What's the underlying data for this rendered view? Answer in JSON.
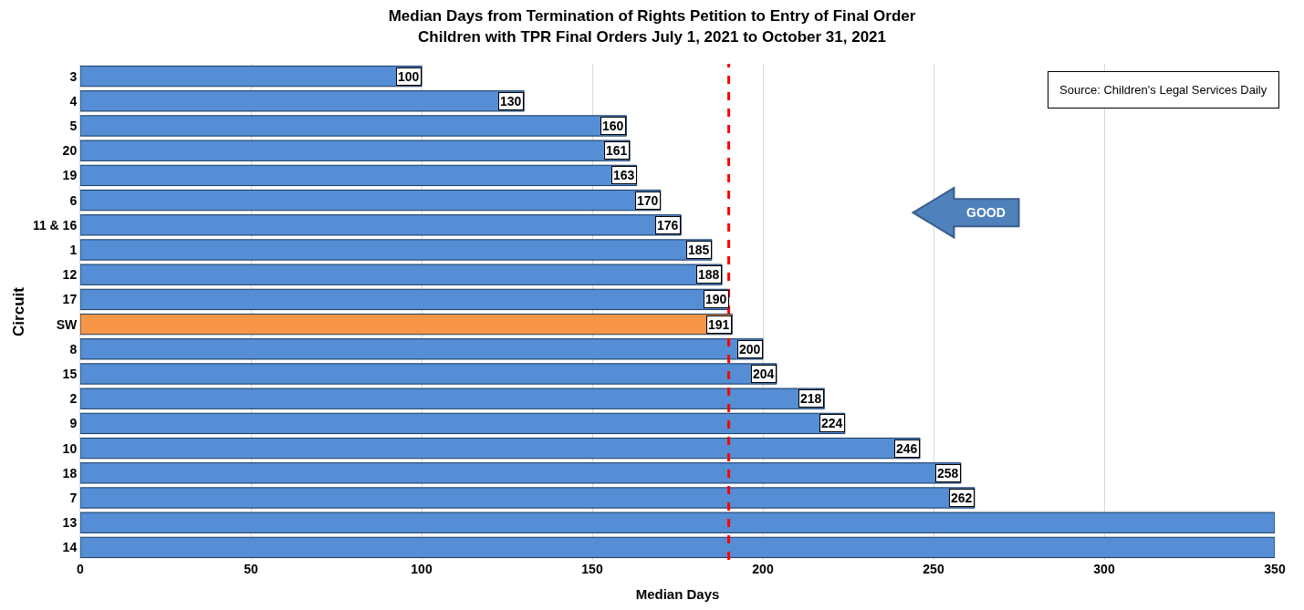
{
  "chart_data": {
    "type": "bar",
    "orientation": "horizontal",
    "title": "Median Days from Termination of Rights Petition to Entry of Final Order\nChildren with TPR Final Orders July 1, 2021 to October 31, 2021",
    "xlabel": "Median Days",
    "ylabel": "Circuit",
    "categories": [
      "3",
      "4",
      "5",
      "20",
      "19",
      "6",
      "11 & 16",
      "1",
      "12",
      "17",
      "SW",
      "8",
      "15",
      "2",
      "9",
      "10",
      "18",
      "7",
      "13",
      "14"
    ],
    "values": [
      100,
      130,
      160,
      161,
      163,
      170,
      176,
      185,
      188,
      190,
      191,
      200,
      204,
      218,
      224,
      246,
      258,
      262,
      350,
      350
    ],
    "value_labels": [
      "100",
      "130",
      "160",
      "161",
      "163",
      "170",
      "176",
      "185",
      "188",
      "190",
      "191",
      "200",
      "204",
      "218",
      "224",
      "246",
      "258",
      "262",
      null,
      null
    ],
    "colors": [
      "#558ed5",
      "#558ed5",
      "#558ed5",
      "#558ed5",
      "#558ed5",
      "#558ed5",
      "#558ed5",
      "#558ed5",
      "#558ed5",
      "#558ed5",
      "#f79646",
      "#558ed5",
      "#558ed5",
      "#558ed5",
      "#558ed5",
      "#558ed5",
      "#558ed5",
      "#558ed5",
      "#558ed5",
      "#558ed5"
    ],
    "xlim": [
      0,
      350
    ],
    "xticks": [
      0,
      50,
      100,
      150,
      200,
      250,
      300,
      350
    ],
    "grid": "x",
    "legend": false,
    "ref_lines": [
      {
        "axis": "x",
        "value": 190,
        "color": "#ff0000",
        "line_style": "dashed"
      }
    ],
    "annotations": [
      "Source: Children's Legal Services Daily",
      "GOOD"
    ]
  }
}
